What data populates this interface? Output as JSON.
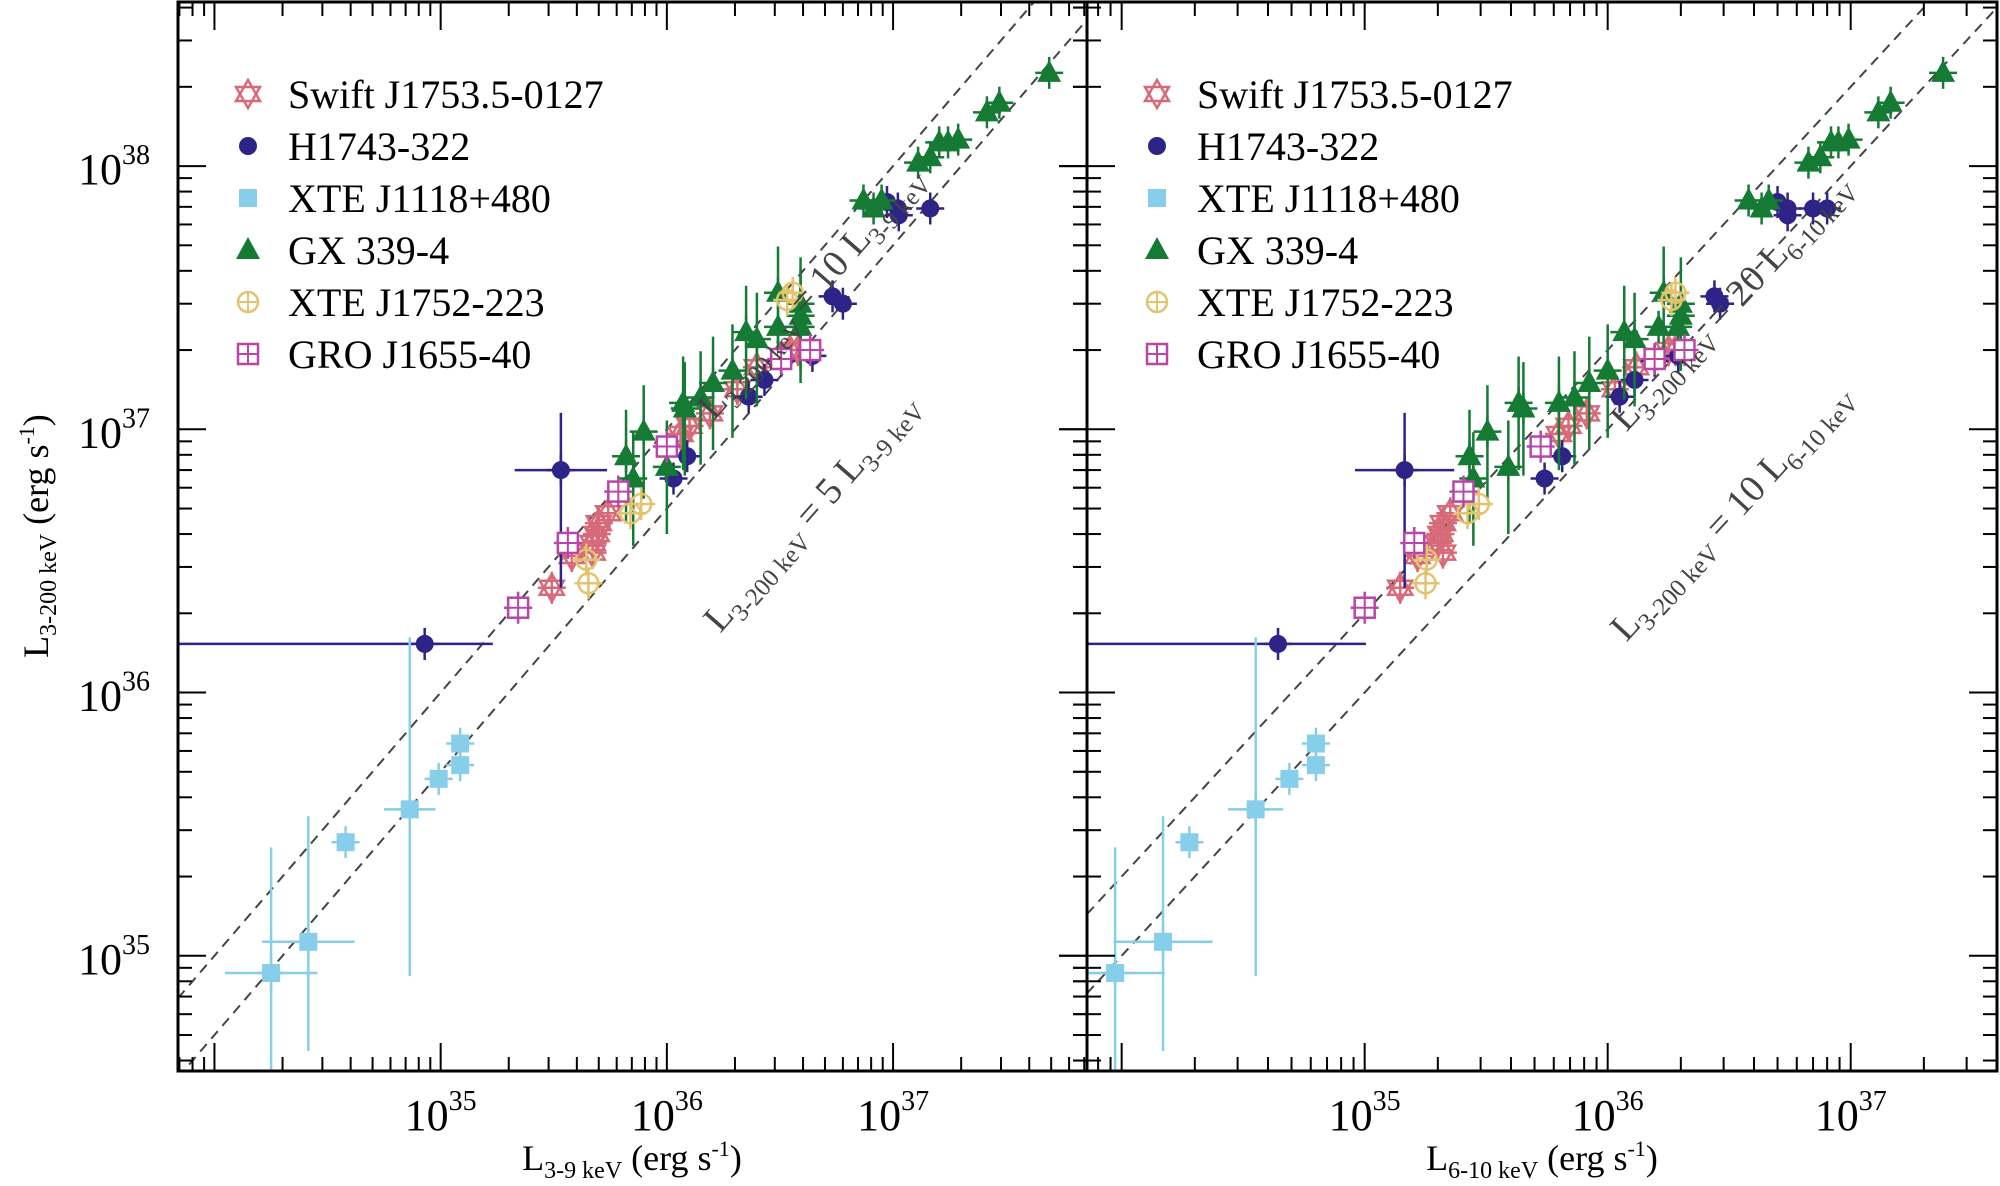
{
  "chart_data": [
    {
      "type": "scatter",
      "panel": "left",
      "xscale": "log",
      "yscale": "log",
      "xlabel": {
        "main": "L",
        "sub": "3-9 keV",
        "unit": "(erg s",
        "unit_sup": "-1",
        "unit_close": ")"
      },
      "ylabel": {
        "main": "L",
        "sub": "3-200 keV",
        "unit": "(erg s",
        "unit_sup": "-1",
        "unit_close": ")"
      },
      "xlim": [
        6.9e+33,
        7.2e+37
      ],
      "ylim": [
        3.65e+34,
        4.2e+38
      ],
      "xticks": [
        {
          "base": "10",
          "exp": "35",
          "value": 1e+35
        },
        {
          "base": "10",
          "exp": "36",
          "value": 1e+36
        },
        {
          "base": "10",
          "exp": "37",
          "value": 1e+37
        }
      ],
      "yticks": [
        {
          "base": "10",
          "exp": "35",
          "value": 1e+35
        },
        {
          "base": "10",
          "exp": "36",
          "value": 1e+36
        },
        {
          "base": "10",
          "exp": "37",
          "value": 1e+37
        },
        {
          "base": "10",
          "exp": "38",
          "value": 1e+38
        }
      ],
      "reference_lines": [
        {
          "factor": 10,
          "label": {
            "lhs": "L",
            "lhs_sub": "3-200 keV",
            "eq": " = 10 ",
            "rhs": "L",
            "rhs_sub": "3-9 keV"
          }
        },
        {
          "factor": 5,
          "label": {
            "lhs": "L",
            "lhs_sub": "3-200 keV",
            "eq": " = 5 ",
            "rhs": "L",
            "rhs_sub": "3-9 keV"
          }
        }
      ],
      "legend_position": "top-left",
      "series": [
        {
          "name": "Swift J1753.5-0127",
          "marker": "star-of-david",
          "color": "#d66a78",
          "points": [
            [
              3.1e+35,
              2.5e+36
            ],
            [
              3.8e+35,
              3.3e+36
            ],
            [
              4.7e+35,
              3.4e+36
            ],
            [
              4.9e+35,
              4e+36
            ],
            [
              5e+35,
              4.4e+36
            ],
            [
              5.5e+35,
              4.8e+36
            ],
            [
              4.7e+35,
              3.7e+36
            ],
            [
              1.15e+36,
              9.6e+36
            ],
            [
              1.26e+36,
              1.03e+37
            ],
            [
              1.55e+36,
              1.15e+37
            ],
            [
              2.05e+36,
              1.42e+37
            ],
            [
              2.5e+36,
              1.72e+37
            ],
            [
              3.5e+36,
              2e+37
            ],
            [
              3.8e+36,
              2e+37
            ]
          ]
        },
        {
          "name": "H1743-322",
          "marker": "circle",
          "color": "#2e2386",
          "points": [
            [
              8.5e+34,
              1.53e+36
            ],
            [
              3.4e+35,
              7e+36
            ],
            [
              1.07e+36,
              6.5e+36
            ],
            [
              1.23e+36,
              7.9e+36
            ],
            [
              2.3e+36,
              1.33e+37
            ],
            [
              2.7e+36,
              1.54e+37
            ],
            [
              3.2e+36,
              1.82e+37
            ],
            [
              4.4e+36,
              1.9e+37
            ],
            [
              5.4e+36,
              3.2e+37
            ],
            [
              6e+36,
              3e+37
            ],
            [
              9.4e+36,
              7.3e+37
            ],
            [
              1.05e+37,
              6.9e+37
            ],
            [
              1.06e+37,
              6.5e+37
            ],
            [
              1.46e+37,
              6.9e+37
            ]
          ]
        },
        {
          "name": "XTE J1118+480",
          "marker": "square",
          "color": "#87ceeb",
          "points": [
            [
              1.78e+34,
              8.6e+34
            ],
            [
              2.6e+34,
              1.13e+35
            ],
            [
              3.8e+34,
              2.7e+35
            ],
            [
              7.3e+34,
              3.6e+35
            ],
            [
              9.8e+34,
              4.7e+35
            ],
            [
              1.22e+35,
              5.3e+35
            ],
            [
              1.22e+35,
              6.4e+35
            ]
          ]
        },
        {
          "name": "GX 339-4",
          "marker": "triangle",
          "color": "#157a34",
          "points": [
            [
              6.6e+35,
              7.9e+36
            ],
            [
              7.1e+35,
              6.5e+36
            ],
            [
              7.9e+35,
              9.8e+36
            ],
            [
              1e+36,
              7.2e+36
            ],
            [
              1.18e+36,
              1.26e+37
            ],
            [
              1.2e+36,
              1.2e+37
            ],
            [
              1.41e+36,
              1.32e+37
            ],
            [
              1.6e+36,
              1.5e+37
            ],
            [
              1.95e+36,
              1.67e+37
            ],
            [
              2.24e+36,
              2.34e+37
            ],
            [
              2.5e+36,
              2.2e+37
            ],
            [
              3.1e+36,
              3.3e+37
            ],
            [
              3.9e+36,
              3e+37
            ],
            [
              3.9e+36,
              2.7e+37
            ],
            [
              3.1e+36,
              2.45e+37
            ],
            [
              3.9e+36,
              2.45e+37
            ],
            [
              7.4e+36,
              7.4e+37
            ],
            [
              8.2e+36,
              6.9e+37
            ],
            [
              8.9e+36,
              7.4e+37
            ],
            [
              1.29e+37,
              1.03e+38
            ],
            [
              1.46e+37,
              1.08e+38
            ],
            [
              1.6e+37,
              1.23e+38
            ],
            [
              1.75e+37,
              1.23e+38
            ],
            [
              1.94e+37,
              1.26e+38
            ],
            [
              2.6e+37,
              1.6e+38
            ],
            [
              2.95e+37,
              1.74e+38
            ],
            [
              4.9e+37,
              2.26e+38
            ]
          ]
        },
        {
          "name": "XTE J1752-223",
          "marker": "circle-plus",
          "color": "#e2c36e",
          "points": [
            [
              4.5e+35,
              2.6e+36
            ],
            [
              4.4e+35,
              3.2e+36
            ],
            [
              6.9e+35,
              4.8e+36
            ],
            [
              7.7e+35,
              5.2e+36
            ],
            [
              3.4e+36,
              3.1e+37
            ],
            [
              3.6e+36,
              3.3e+37
            ]
          ]
        },
        {
          "name": "GRO J1655-40",
          "marker": "square-plus",
          "color": "#b845a8",
          "points": [
            [
              2.2e+35,
              2.1e+36
            ],
            [
              3.65e+35,
              3.7e+36
            ],
            [
              6.1e+35,
              5.8e+36
            ],
            [
              1e+36,
              8.6e+36
            ],
            [
              3.2e+36,
              1.85e+37
            ],
            [
              4.3e+36,
              2e+37
            ]
          ]
        }
      ]
    },
    {
      "type": "scatter",
      "panel": "right",
      "xscale": "log",
      "yscale": "log",
      "xlabel": {
        "main": "L",
        "sub": "6-10 keV",
        "unit": "(erg s",
        "unit_sup": "-1",
        "unit_close": ")"
      },
      "ylabel": {
        "main": "L",
        "sub": "3-200 keV",
        "unit": "(erg s",
        "unit_sup": "-1",
        "unit_close": ")"
      },
      "xlim": [
        7.2e+33,
        4e+37
      ],
      "ylim": [
        3.65e+34,
        4.2e+38
      ],
      "xticks": [
        {
          "base": "10",
          "exp": "35",
          "value": 1e+35
        },
        {
          "base": "10",
          "exp": "36",
          "value": 1e+36
        },
        {
          "base": "10",
          "exp": "37",
          "value": 1e+37
        }
      ],
      "yticks": [
        {
          "base": "10",
          "exp": "35",
          "value": 1e+35
        },
        {
          "base": "10",
          "exp": "36",
          "value": 1e+36
        },
        {
          "base": "10",
          "exp": "37",
          "value": 1e+37
        },
        {
          "base": "10",
          "exp": "38",
          "value": 1e+38
        }
      ],
      "reference_lines": [
        {
          "factor": 20,
          "label": {
            "lhs": "L",
            "lhs_sub": "3-200 keV",
            "eq": " = 20 ",
            "rhs": "L",
            "rhs_sub": "6-10 keV"
          }
        },
        {
          "factor": 10,
          "label": {
            "lhs": "L",
            "lhs_sub": "3-200 keV",
            "eq": " = 10 ",
            "rhs": "L",
            "rhs_sub": "6-10 keV"
          }
        }
      ],
      "legend_position": "top-left",
      "series": [
        {
          "name": "Swift J1753.5-0127",
          "marker": "star-of-david",
          "color": "#d66a78",
          "points": [
            [
              1.4e+35,
              2.5e+36
            ],
            [
              1.65e+35,
              3.3e+36
            ],
            [
              2.1e+35,
              3.4e+36
            ],
            [
              2.05e+35,
              4e+36
            ],
            [
              2.1e+35,
              4.4e+36
            ],
            [
              2.25e+35,
              4.8e+36
            ],
            [
              2e+35,
              3.7e+36
            ],
            [
              6.3e+35,
              9.6e+36
            ],
            [
              6.9e+35,
              1.03e+37
            ],
            [
              8.2e+35,
              1.15e+37
            ],
            [
              1.07e+36,
              1.42e+37
            ],
            [
              1.31e+36,
              1.72e+37
            ],
            [
              1.78e+36,
              2e+37
            ],
            [
              1.9e+36,
              2e+37
            ]
          ]
        },
        {
          "name": "H1743-322",
          "marker": "circle",
          "color": "#2e2386",
          "points": [
            [
              4.4e+34,
              1.53e+36
            ],
            [
              1.46e+35,
              7e+36
            ],
            [
              5.5e+35,
              6.5e+36
            ],
            [
              6.5e+35,
              7.9e+36
            ],
            [
              1.12e+36,
              1.33e+37
            ],
            [
              1.29e+36,
              1.54e+37
            ],
            [
              1.56e+36,
              1.82e+37
            ],
            [
              1.95e+36,
              1.9e+37
            ],
            [
              2.75e+36,
              3.2e+37
            ],
            [
              2.9e+36,
              3e+37
            ],
            [
              5e+36,
              7.3e+37
            ],
            [
              5.5e+36,
              6.9e+37
            ],
            [
              5.5e+36,
              6.5e+37
            ],
            [
              7e+36,
              6.9e+37
            ],
            [
              8e+36,
              6.9e+37
            ]
          ]
        },
        {
          "name": "XTE J1118+480",
          "marker": "square",
          "color": "#87ceeb",
          "points": [
            [
              9.4e+33,
              8.6e+34
            ],
            [
              1.48e+34,
              1.13e+35
            ],
            [
              1.9e+34,
              2.7e+35
            ],
            [
              3.56e+34,
              3.6e+35
            ],
            [
              4.9e+34,
              4.7e+35
            ],
            [
              6.3e+34,
              5.3e+35
            ],
            [
              6.3e+34,
              6.4e+35
            ]
          ]
        },
        {
          "name": "GX 339-4",
          "marker": "triangle",
          "color": "#157a34",
          "points": [
            [
              2.7e+35,
              7.9e+36
            ],
            [
              2.8e+35,
              6.5e+36
            ],
            [
              3.2e+35,
              9.8e+36
            ],
            [
              3.9e+35,
              7.2e+36
            ],
            [
              4.3e+35,
              1.26e+37
            ],
            [
              4.5e+35,
              1.2e+37
            ],
            [
              6.3e+35,
              1.26e+37
            ],
            [
              7.3e+35,
              1.32e+37
            ],
            [
              8.4e+35,
              1.5e+37
            ],
            [
              1e+36,
              1.67e+37
            ],
            [
              1.17e+36,
              2.34e+37
            ],
            [
              1.29e+36,
              2.2e+37
            ],
            [
              1.7e+36,
              3.3e+37
            ],
            [
              2e+36,
              3e+37
            ],
            [
              2e+36,
              2.7e+37
            ],
            [
              1.62e+36,
              2.45e+37
            ],
            [
              1.95e+36,
              2.45e+37
            ],
            [
              3.8e+36,
              7.4e+37
            ],
            [
              4.3e+36,
              6.9e+37
            ],
            [
              4.6e+36,
              7.4e+37
            ],
            [
              6.7e+36,
              1.03e+38
            ],
            [
              7.5e+36,
              1.08e+38
            ],
            [
              8.3e+36,
              1.23e+38
            ],
            [
              8.9e+36,
              1.23e+38
            ],
            [
              9.8e+36,
              1.26e+38
            ],
            [
              1.3e+37,
              1.6e+38
            ],
            [
              1.46e+37,
              1.74e+38
            ],
            [
              2.4e+37,
              2.26e+38
            ]
          ]
        },
        {
          "name": "XTE J1752-223",
          "marker": "circle-plus",
          "color": "#e2c36e",
          "points": [
            [
              1.78e+35,
              2.6e+36
            ],
            [
              1.8e+35,
              3.2e+36
            ],
            [
              2.65e+35,
              4.8e+36
            ],
            [
              2.95e+35,
              5.2e+36
            ],
            [
              1.83e+36,
              3.1e+37
            ],
            [
              1.9e+36,
              3.3e+37
            ]
          ]
        },
        {
          "name": "GRO J1655-40",
          "marker": "square-plus",
          "color": "#b845a8",
          "points": [
            [
              1e+35,
              2.1e+36
            ],
            [
              1.6e+35,
              3.7e+36
            ],
            [
              2.55e+35,
              5.8e+36
            ],
            [
              5.3e+35,
              8.6e+36
            ],
            [
              1.56e+36,
              1.85e+37
            ],
            [
              2.07e+36,
              2e+37
            ]
          ]
        }
      ]
    }
  ]
}
